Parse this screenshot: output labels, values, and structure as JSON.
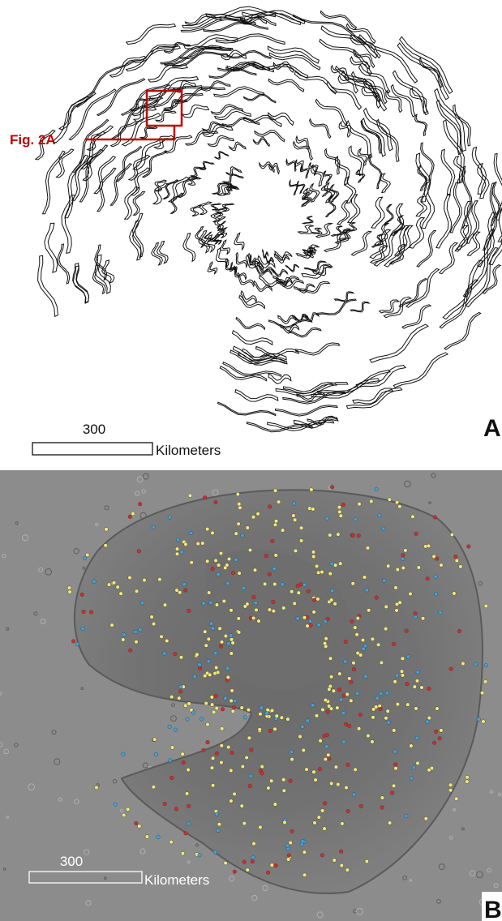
{
  "panel_a": {
    "callout": "Fig. 2A",
    "scale_label": 300,
    "scale_unit": "Kilometers",
    "panel_label": "A"
  },
  "panel_b": {
    "scale_label": 300,
    "scale_unit": "Kilometers",
    "panel_label": "B"
  }
}
